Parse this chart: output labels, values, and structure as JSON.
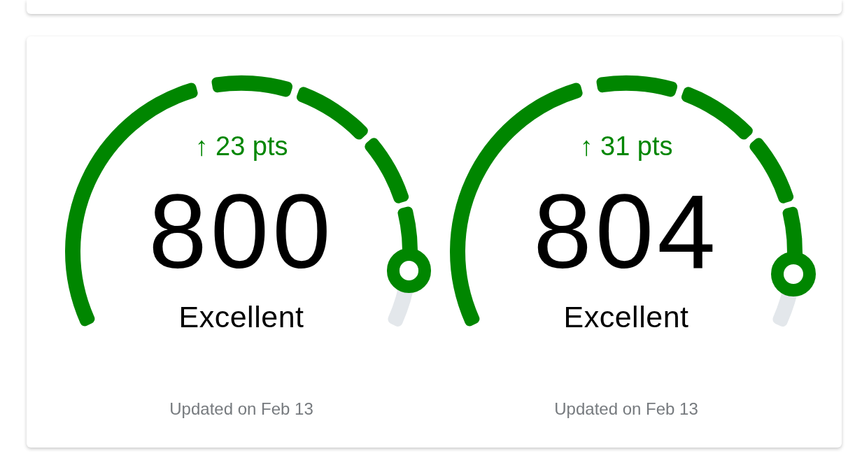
{
  "chart_data": [
    {
      "type": "donut",
      "categories": [
        null,
        null,
        null,
        null,
        null,
        null
      ],
      "values": [
        46,
        12.5,
        12.5,
        11,
        9.5,
        8.5
      ],
      "colors": [
        "#008600",
        "#008600",
        "#008600",
        "#008600",
        "#008600",
        "#e3e7eb"
      ],
      "annotations": [
        "↑ 23 pts",
        "800",
        "Excellent",
        "Updated on Feb 13"
      ]
    },
    {
      "type": "donut",
      "categories": [
        null,
        null,
        null,
        null,
        null,
        null
      ],
      "values": [
        46,
        12.5,
        12.5,
        11,
        10,
        8
      ],
      "colors": [
        "#008600",
        "#008600",
        "#008600",
        "#008600",
        "#008600",
        "#e3e7eb"
      ],
      "annotations": [
        "↑ 31 pts",
        "804",
        "Excellent",
        "Updated on Feb 13"
      ]
    }
  ]
}
